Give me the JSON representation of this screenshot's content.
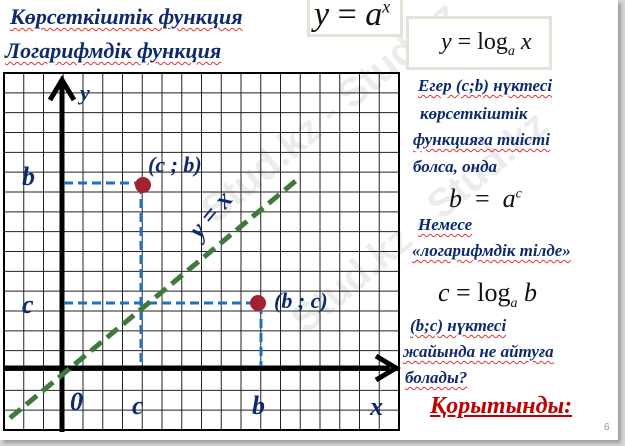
{
  "title_exp": "Көрсеткіштік функция",
  "title_log": "Логарифмдік функция",
  "formula_exp": {
    "lhs": "y",
    "eq": "=",
    "base": "a",
    "exp": "x"
  },
  "formula_log": {
    "lhs": "y",
    "eq": "=",
    "log": "log",
    "base": "a",
    "arg": "x"
  },
  "graph": {
    "axis_y": "y",
    "axis_x": "x",
    "origin": "0",
    "tick_b_y": "b",
    "tick_c_y": "c",
    "tick_c_x": "c",
    "tick_b_x": "b",
    "point1": "(c ; b)",
    "point2": "(b ; c)",
    "line_label": "y = x",
    "colors": {
      "grid": "#000000",
      "point": "#a3222f",
      "line": "#3f7a3c",
      "guide": "#1f6fc4"
    }
  },
  "text": {
    "line1": "Егер (c;b) нүктесі",
    "line2": "көрсеткіштік",
    "line3": "функцияға тиісті",
    "line4": "болса, онда",
    "formula_b": {
      "lhs": "b",
      "eq": "=",
      "base": "a",
      "exp": "c"
    },
    "line5": "Немесе",
    "line6": "«логарифмдік тілде»",
    "formula_c": {
      "lhs": "c",
      "eq": "=",
      "log": "log",
      "base": "a",
      "arg": "b"
    },
    "line7": "(b;c) нүктесі",
    "line8": "жайында не айтуға",
    "line9": "болады?",
    "conclusion": "Қорытынды:"
  },
  "watermark": "Stud.kz - Stud.kz",
  "slide_number": "6"
}
